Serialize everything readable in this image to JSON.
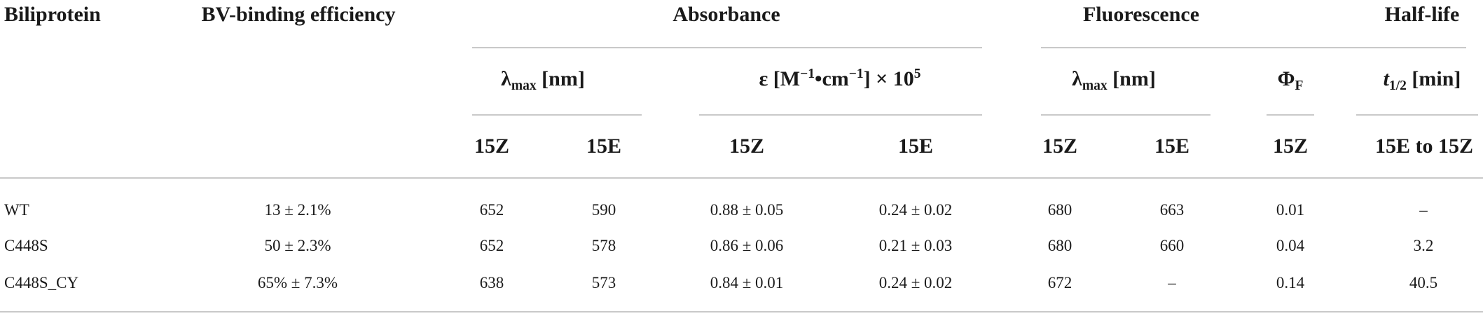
{
  "table": {
    "group_headers": {
      "biliprotein": "Biliprotein",
      "bv_binding": "BV-binding efficiency",
      "absorbance": "Absorbance",
      "fluorescence": "Fluorescence",
      "half_life": "Half-life"
    },
    "sub_headers": {
      "abs_lambda_symbol": "λ",
      "abs_lambda_sub": "max",
      "abs_lambda_unit": " [nm]",
      "abs_eps_prefix": "ε [M",
      "abs_eps_sup1": "−1",
      "abs_eps_mid": "•cm",
      "abs_eps_sup2": "−1",
      "abs_eps_suffix": "] × 10",
      "abs_eps_sup3": "5",
      "fl_lambda_symbol": "λ",
      "fl_lambda_sub": "max",
      "fl_lambda_unit": " [nm]",
      "phi_symbol": "Φ",
      "phi_sub": "F",
      "t_symbol": "t",
      "t_sub": "1/2",
      "t_unit": " [min]"
    },
    "state_headers": [
      "15Z",
      "15E",
      "15Z",
      "15E",
      "15Z",
      "15E",
      "15Z",
      "15E to 15Z"
    ],
    "rows": [
      [
        "WT",
        "13 ± 2.1%",
        "652",
        "590",
        "0.88 ± 0.05",
        "0.24 ± 0.02",
        "680",
        "663",
        "0.01",
        "–"
      ],
      [
        "C448S",
        "50 ± 2.3%",
        "652",
        "578",
        "0.86 ± 0.06",
        "0.21 ± 0.03",
        "680",
        "660",
        "0.04",
        "3.2"
      ],
      [
        "C448S_CY",
        "65% ± 7.3%",
        "638",
        "573",
        "0.84 ± 0.01",
        "0.24 ± 0.02",
        "672",
        "–",
        "0.14",
        "40.5"
      ]
    ]
  }
}
